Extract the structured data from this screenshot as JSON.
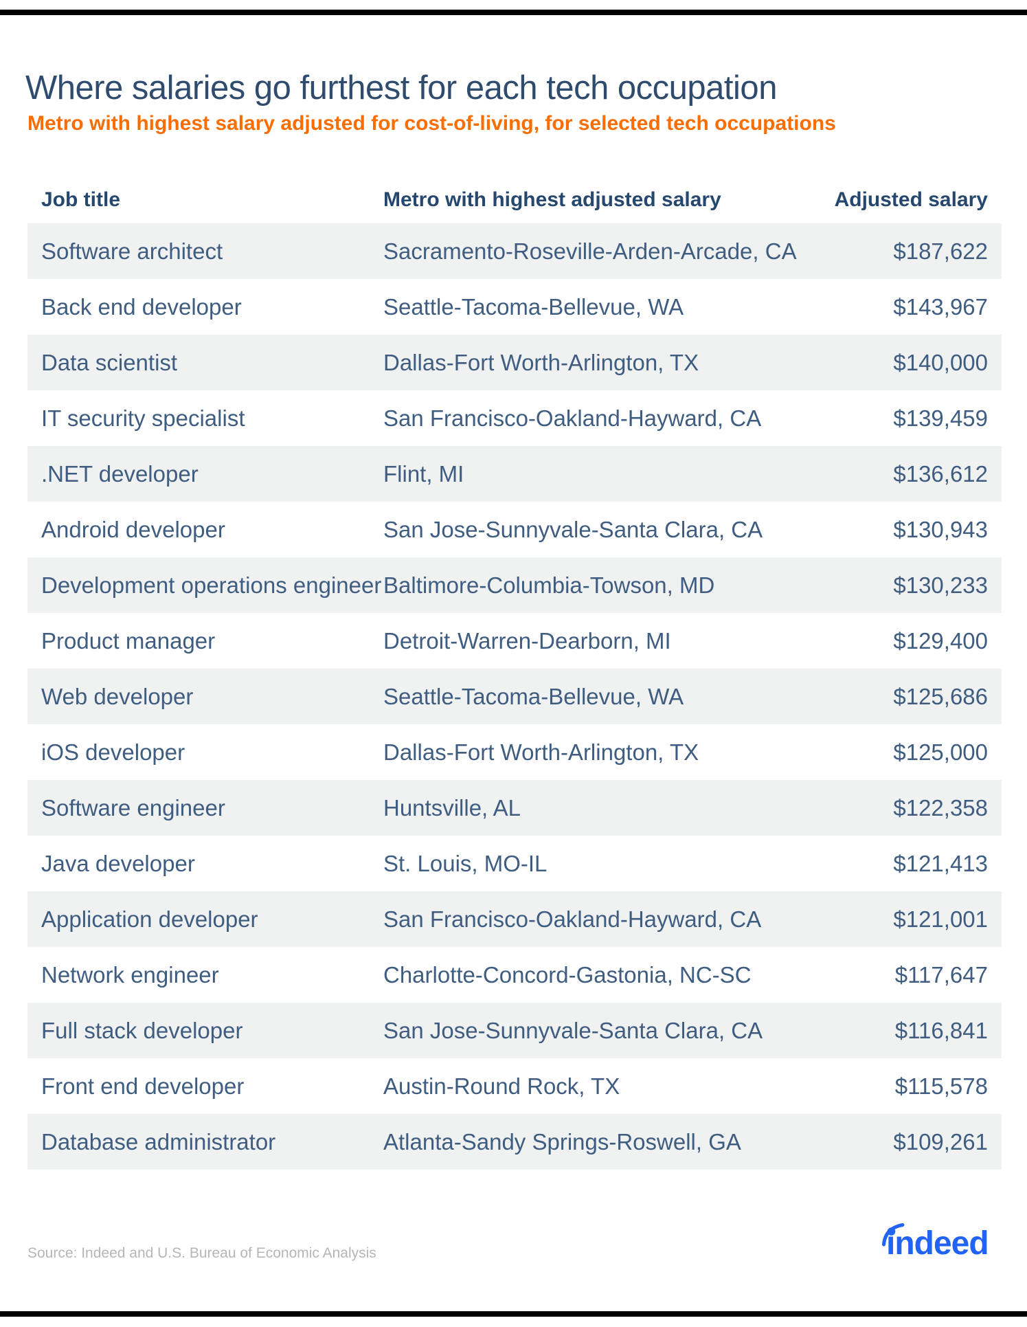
{
  "page": {
    "title": "Where salaries go furthest for each tech occupation",
    "subtitle": "Metro with highest salary adjusted for cost-of-living, for selected tech occupations",
    "source": "Source: Indeed and U.S. Bureau of Economic Analysis",
    "brand": "indeed",
    "brand_wordmark": "ındeed"
  },
  "colors": {
    "title_navy": "#2f4b6e",
    "header_navy": "#26486e",
    "body_text_blue": "#3f5d80",
    "accent_orange": "#f96e04",
    "row_stripe_gray": "#f0f1f1",
    "brand_blue": "#2164f3",
    "divider_black": "#000000",
    "source_gray": "#b6b6b6"
  },
  "chart_data": {
    "type": "table",
    "title": "Where salaries go furthest for each tech occupation",
    "subtitle": "Metro with highest salary adjusted for cost-of-living, for selected tech occupations",
    "source": "Source: Indeed and U.S. Bureau of Economic Analysis",
    "layout": {
      "striped_rows": true,
      "stripe_on": "odd",
      "salary_align": "right",
      "grid": false
    },
    "columns": [
      "Job title",
      "Metro with highest adjusted salary",
      "Adjusted salary"
    ],
    "rows": [
      {
        "job": "Software architect",
        "metro": "Sacramento-Roseville-Arden-Arcade, CA",
        "salary": "$187,622",
        "salary_value": 187622
      },
      {
        "job": "Back end developer",
        "metro": "Seattle-Tacoma-Bellevue, WA",
        "salary": "$143,967",
        "salary_value": 143967
      },
      {
        "job": "Data scientist",
        "metro": "Dallas-Fort Worth-Arlington, TX",
        "salary": "$140,000",
        "salary_value": 140000
      },
      {
        "job": "IT security specialist",
        "metro": "San Francisco-Oakland-Hayward, CA",
        "salary": "$139,459",
        "salary_value": 139459
      },
      {
        "job": ".NET developer",
        "metro": "Flint, MI",
        "salary": "$136,612",
        "salary_value": 136612
      },
      {
        "job": "Android developer",
        "metro": "San Jose-Sunnyvale-Santa Clara, CA",
        "salary": "$130,943",
        "salary_value": 130943
      },
      {
        "job": "Development operations engineer",
        "metro": "Baltimore-Columbia-Towson, MD",
        "salary": "$130,233",
        "salary_value": 130233
      },
      {
        "job": "Product manager",
        "metro": "Detroit-Warren-Dearborn, MI",
        "salary": "$129,400",
        "salary_value": 129400
      },
      {
        "job": "Web developer",
        "metro": "Seattle-Tacoma-Bellevue, WA",
        "salary": "$125,686",
        "salary_value": 125686
      },
      {
        "job": "iOS developer",
        "metro": "Dallas-Fort Worth-Arlington, TX",
        "salary": "$125,000",
        "salary_value": 125000
      },
      {
        "job": "Software engineer",
        "metro": "Huntsville, AL",
        "salary": "$122,358",
        "salary_value": 122358
      },
      {
        "job": "Java developer",
        "metro": "St. Louis, MO-IL",
        "salary": "$121,413",
        "salary_value": 121413
      },
      {
        "job": "Application developer",
        "metro": "San Francisco-Oakland-Hayward, CA",
        "salary": "$121,001",
        "salary_value": 121001
      },
      {
        "job": "Network engineer",
        "metro": "Charlotte-Concord-Gastonia, NC-SC",
        "salary": "$117,647",
        "salary_value": 117647
      },
      {
        "job": "Full stack developer",
        "metro": "San Jose-Sunnyvale-Santa Clara, CA",
        "salary": "$116,841",
        "salary_value": 116841
      },
      {
        "job": "Front end developer",
        "metro": "Austin-Round Rock, TX",
        "salary": "$115,578",
        "salary_value": 115578
      },
      {
        "job": "Database administrator",
        "metro": "Atlanta-Sandy Springs-Roswell, GA",
        "salary": "$109,261",
        "salary_value": 109261
      }
    ]
  }
}
